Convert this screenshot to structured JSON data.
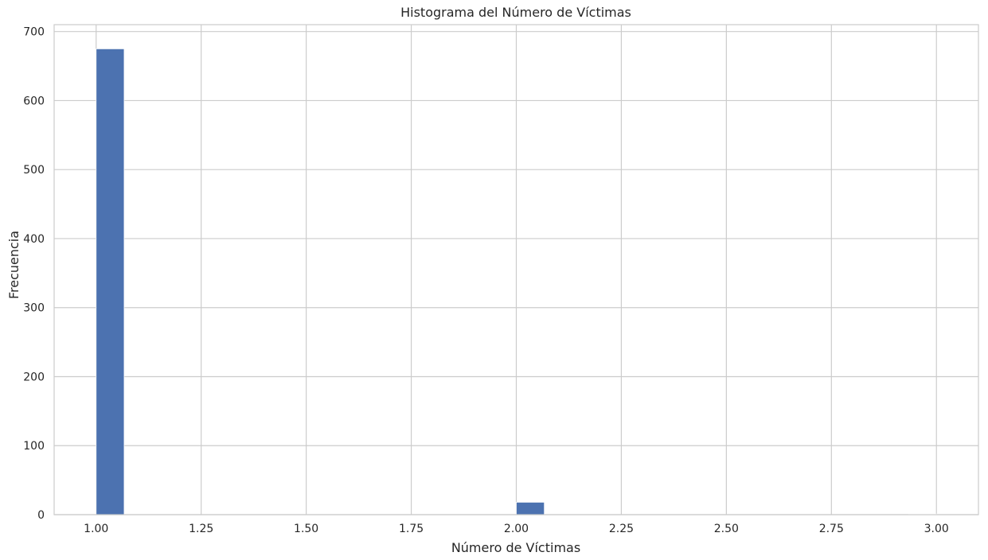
{
  "chart_data": {
    "type": "bar",
    "title": "Histograma del Número de Víctimas",
    "xlabel": "Número de Víctimas",
    "ylabel": "Frecuencia",
    "xlim": [
      0.9,
      3.1
    ],
    "ylim": [
      0,
      710
    ],
    "bin_width": 0.0667,
    "bins": [
      {
        "x_start": 1.0,
        "x_end": 1.0667,
        "count": 675
      },
      {
        "x_start": 2.0,
        "x_end": 2.0667,
        "count": 18
      },
      {
        "x_start": 2.9333,
        "x_end": 3.0,
        "count": 1
      }
    ],
    "x_ticks": [
      1.0,
      1.25,
      1.5,
      1.75,
      2.0,
      2.25,
      2.5,
      2.75,
      3.0
    ],
    "x_tick_labels": [
      "1.00",
      "1.25",
      "1.50",
      "1.75",
      "2.00",
      "2.25",
      "2.50",
      "2.75",
      "3.00"
    ],
    "y_ticks": [
      0,
      100,
      200,
      300,
      400,
      500,
      600,
      700
    ],
    "y_tick_labels": [
      "0",
      "100",
      "200",
      "300",
      "400",
      "500",
      "600",
      "700"
    ],
    "grid": true,
    "colors": {
      "bar": "#4c72b0",
      "grid": "#cccccc",
      "frame": "#cccccc",
      "text": "#262626"
    }
  }
}
